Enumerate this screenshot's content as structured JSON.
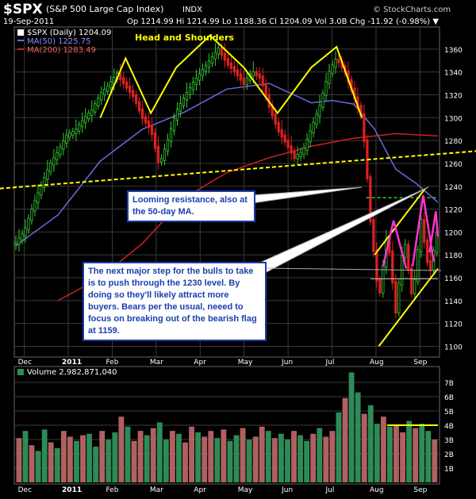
{
  "header": {
    "symbol": "$SPX",
    "description": "(S&P 500 Large Cap Index)",
    "exchange": "INDX",
    "date": "19-Sep-2011",
    "quote": "Op 1214.99  Hi 1214.99  Lo 1188.36  Cl 1204.09  Vol 3.0B  Chg -11.92 (-0.98%) ▼",
    "watermark": "© StockCharts.com"
  },
  "legend": {
    "price": "$SPX (Daily) 1204.09",
    "ma50": "MA(50) 1225.75",
    "ma200": "MA(200) 1283.49",
    "volume": "Volume 2,982,871,040"
  },
  "annotations": {
    "pattern_title": "Head and Shoulders",
    "callout_resistance": "Looming resistance, also at the 50-day MA.",
    "callout_bulls": "The next major step for the bulls to take is to push through the 1230 level. By doing so they'll likely attract more buyers. Bears per the usual, neeed to focus on breaking out of the bearish flag at 1159."
  },
  "colors": {
    "background": "#000000",
    "grid": "#3a3a3a",
    "candle_up": "#33cc33",
    "candle_down": "#e02020",
    "ma50": "#6a6ae0",
    "ma200": "#d02020",
    "pattern_lines": "#ffff00",
    "flag_lines": "#ff33cc",
    "resistance_level": "#33cc33",
    "volume_up": "#2e8b57",
    "volume_down": "#b06060",
    "callout_text": "#1a3fb0"
  },
  "chart_data": [
    {
      "type": "line",
      "title": "$SPX (Daily)",
      "y_ticks": [
        1100,
        1120,
        1140,
        1160,
        1180,
        1200,
        1220,
        1240,
        1260,
        1280,
        1300,
        1320,
        1340,
        1360
      ],
      "ylim": [
        1092,
        1378
      ],
      "x_ticks": [
        "Dec",
        "2011",
        "Feb",
        "Mar",
        "Apr",
        "May",
        "Jun",
        "Jul",
        "Aug",
        "Sep"
      ],
      "xlim_days": [
        0,
        200
      ],
      "series": [
        {
          "name": "$SPX",
          "points": [
            [
              0,
              1190
            ],
            [
              4,
              1200
            ],
            [
              8,
              1222
            ],
            [
              12,
              1240
            ],
            [
              16,
              1258
            ],
            [
              20,
              1270
            ],
            [
              24,
              1284
            ],
            [
              28,
              1288
            ],
            [
              32,
              1298
            ],
            [
              36,
              1306
            ],
            [
              40,
              1320
            ],
            [
              44,
              1328
            ],
            [
              48,
              1338
            ],
            [
              52,
              1328
            ],
            [
              56,
              1318
            ],
            [
              60,
              1300
            ],
            [
              64,
              1290
            ],
            [
              68,
              1258
            ],
            [
              72,
              1280
            ],
            [
              76,
              1305
            ],
            [
              80,
              1318
            ],
            [
              84,
              1330
            ],
            [
              88,
              1340
            ],
            [
              92,
              1350
            ],
            [
              96,
              1360
            ],
            [
              100,
              1348
            ],
            [
              104,
              1340
            ],
            [
              108,
              1330
            ],
            [
              112,
              1340
            ],
            [
              116,
              1335
            ],
            [
              120,
              1310
            ],
            [
              124,
              1290
            ],
            [
              128,
              1278
            ],
            [
              132,
              1265
            ],
            [
              136,
              1270
            ],
            [
              140,
              1290
            ],
            [
              144,
              1310
            ],
            [
              148,
              1338
            ],
            [
              152,
              1352
            ],
            [
              156,
              1340
            ],
            [
              160,
              1320
            ],
            [
              164,
              1300
            ],
            [
              166,
              1260
            ],
            [
              168,
              1210
            ],
            [
              172,
              1140
            ],
            [
              176,
              1200
            ],
            [
              180,
              1130
            ],
            [
              184,
              1195
            ],
            [
              188,
              1140
            ],
            [
              192,
              1210
            ],
            [
              196,
              1162
            ],
            [
              200,
              1204
            ]
          ]
        },
        {
          "name": "MA(50)",
          "points": [
            [
              0,
              1188
            ],
            [
              20,
              1215
            ],
            [
              40,
              1262
            ],
            [
              60,
              1290
            ],
            [
              80,
              1305
            ],
            [
              100,
              1325
            ],
            [
              120,
              1330
            ],
            [
              140,
              1313
            ],
            [
              150,
              1315
            ],
            [
              160,
              1312
            ],
            [
              170,
              1290
            ],
            [
              180,
              1255
            ],
            [
              190,
              1242
            ],
            [
              200,
              1226
            ]
          ]
        },
        {
          "name": "MA(200)",
          "points": [
            [
              20,
              1140
            ],
            [
              40,
              1160
            ],
            [
              60,
              1190
            ],
            [
              80,
              1230
            ],
            [
              100,
              1252
            ],
            [
              120,
              1265
            ],
            [
              140,
              1275
            ],
            [
              160,
              1282
            ],
            [
              180,
              1286
            ],
            [
              200,
              1284
            ]
          ]
        }
      ],
      "levels": {
        "resistance": 1230,
        "flag_support": 1159,
        "neckline": [
          [
            0,
            1238
          ],
          [
            200,
            1268
          ]
        ]
      },
      "head_and_shoulders": [
        [
          [
            40,
            1300
          ],
          [
            52,
            1352
          ],
          [
            64,
            1304
          ],
          [
            76,
            1344
          ],
          [
            92,
            1372
          ],
          [
            108,
            1344
          ],
          [
            124,
            1304
          ],
          [
            140,
            1344
          ],
          [
            152,
            1362
          ],
          [
            164,
            1300
          ]
        ]
      ],
      "bearish_flag": {
        "upper": [
          [
            170,
            1180
          ],
          [
            194,
            1238
          ]
        ],
        "lower": [
          [
            172,
            1100
          ],
          [
            200,
            1168
          ]
        ]
      }
    },
    {
      "type": "bar",
      "title": "Volume",
      "y_tick_labels": [
        "1B",
        "2B",
        "3B",
        "4B",
        "5B",
        "6B",
        "7B"
      ],
      "y_ticks": [
        1,
        2,
        3,
        4,
        5,
        6,
        7
      ],
      "ylim": [
        0,
        8
      ],
      "x_ticks": [
        "Dec",
        "2011",
        "Feb",
        "Mar",
        "Apr",
        "May",
        "Jun",
        "Jul",
        "Aug",
        "Sep"
      ],
      "reference_level": 4,
      "series": [
        {
          "name": "Volume",
          "values": [
            3.1,
            3.6,
            2.6,
            2.2,
            3.7,
            2.8,
            2.4,
            3.6,
            3.2,
            2.9,
            3.3,
            3.4,
            2.5,
            3.6,
            3.0,
            3.5,
            4.6,
            3.9,
            2.9,
            3.6,
            3.3,
            3.8,
            4.2,
            3.0,
            3.6,
            3.4,
            2.8,
            3.9,
            3.5,
            3.2,
            3.6,
            3.1,
            3.7,
            2.9,
            3.3,
            3.8,
            3.0,
            3.2,
            3.9,
            3.6,
            3.1,
            3.4,
            3.0,
            3.6,
            3.3,
            2.9,
            3.4,
            3.8,
            3.2,
            3.6,
            4.9,
            5.9,
            7.7,
            6.3,
            4.8,
            5.4,
            4.1,
            4.6,
            3.9,
            4.0,
            3.5,
            4.3,
            3.8,
            4.1,
            3.6,
            3.0
          ]
        }
      ]
    }
  ]
}
